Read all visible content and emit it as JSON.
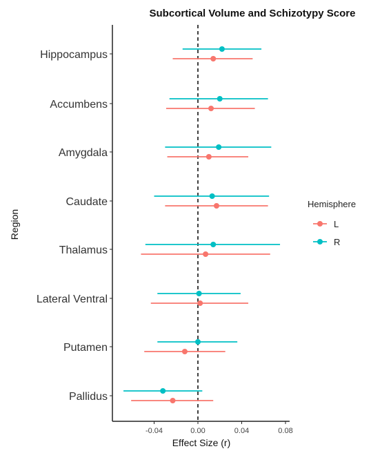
{
  "chart_data": {
    "type": "scatter",
    "title": "Subcortical Volume and Schizotypy Score",
    "xlabel": "Effect Size (r)",
    "ylabel": "Region",
    "xlim": [
      -0.08,
      0.08
    ],
    "x_ticks": [
      -0.04,
      0.0,
      0.04,
      0.08
    ],
    "x_tick_labels": [
      "-0.04",
      "0.00",
      "0.04",
      "0.08"
    ],
    "reference_line_x": 0,
    "categories": [
      "Hippocampus",
      "Accumbens",
      "Amygdala",
      "Caudate",
      "Thalamus",
      "Lateral Ventral",
      "Putamen",
      "Pallidus"
    ],
    "legend": {
      "title": "Hemisphere",
      "position": "right"
    },
    "series": [
      {
        "name": "L",
        "color": "#F8766D",
        "points": [
          {
            "estimate": 0.014,
            "lower": -0.023,
            "upper": 0.05
          },
          {
            "estimate": 0.012,
            "lower": -0.029,
            "upper": 0.052
          },
          {
            "estimate": 0.01,
            "lower": -0.028,
            "upper": 0.046
          },
          {
            "estimate": 0.017,
            "lower": -0.03,
            "upper": 0.064
          },
          {
            "estimate": 0.007,
            "lower": -0.052,
            "upper": 0.066
          },
          {
            "estimate": 0.002,
            "lower": -0.043,
            "upper": 0.046
          },
          {
            "estimate": -0.012,
            "lower": -0.049,
            "upper": 0.025
          },
          {
            "estimate": -0.023,
            "lower": -0.061,
            "upper": 0.014
          }
        ]
      },
      {
        "name": "R",
        "color": "#00BFC4",
        "points": [
          {
            "estimate": 0.022,
            "lower": -0.014,
            "upper": 0.058
          },
          {
            "estimate": 0.02,
            "lower": -0.026,
            "upper": 0.064
          },
          {
            "estimate": 0.019,
            "lower": -0.03,
            "upper": 0.067
          },
          {
            "estimate": 0.013,
            "lower": -0.04,
            "upper": 0.065
          },
          {
            "estimate": 0.014,
            "lower": -0.048,
            "upper": 0.075
          },
          {
            "estimate": 0.001,
            "lower": -0.037,
            "upper": 0.039
          },
          {
            "estimate": 0.0,
            "lower": -0.037,
            "upper": 0.036
          },
          {
            "estimate": -0.032,
            "lower": -0.068,
            "upper": 0.004
          }
        ]
      }
    ]
  }
}
